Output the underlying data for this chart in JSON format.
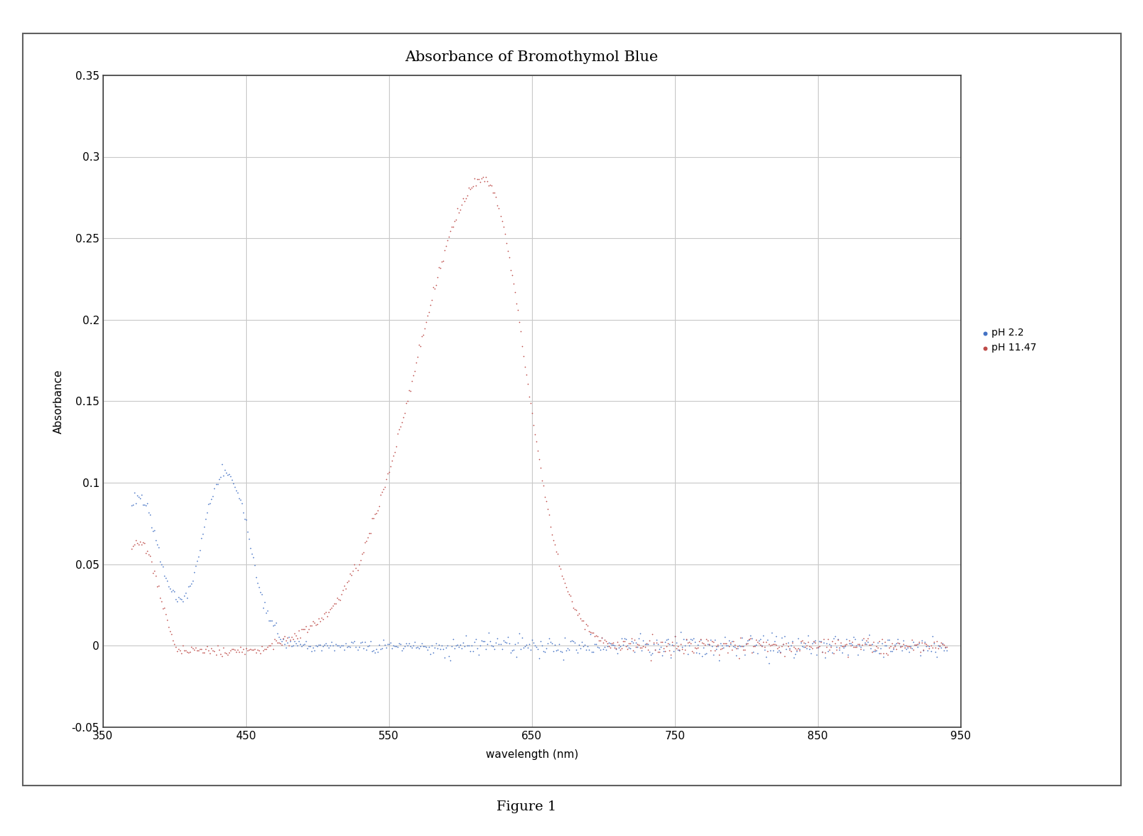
{
  "title": "Absorbance of Bromothymol Blue",
  "xlabel": "wavelength (nm)",
  "ylabel": "Absorbance",
  "figure_caption": "Figure 1",
  "xlim": [
    350,
    950
  ],
  "ylim": [
    -0.05,
    0.35
  ],
  "xticks": [
    350,
    450,
    550,
    650,
    750,
    850,
    950
  ],
  "yticks": [
    -0.05,
    0.0,
    0.05,
    0.1,
    0.15,
    0.2,
    0.25,
    0.3,
    0.35
  ],
  "legend": [
    "pH 2.2",
    "pH 11.47"
  ],
  "color_ph22": "#4472C4",
  "color_ph1147": "#BE4B48",
  "background_color": "#FFFFFF",
  "grid_color": "#C8C8C8",
  "title_fontsize": 15,
  "axis_label_fontsize": 11,
  "tick_fontsize": 11,
  "legend_fontsize": 10,
  "caption_fontsize": 14,
  "border_color": "#404040",
  "noise_scale_ph22": 0.0018,
  "noise_scale_ph1147": 0.0015
}
